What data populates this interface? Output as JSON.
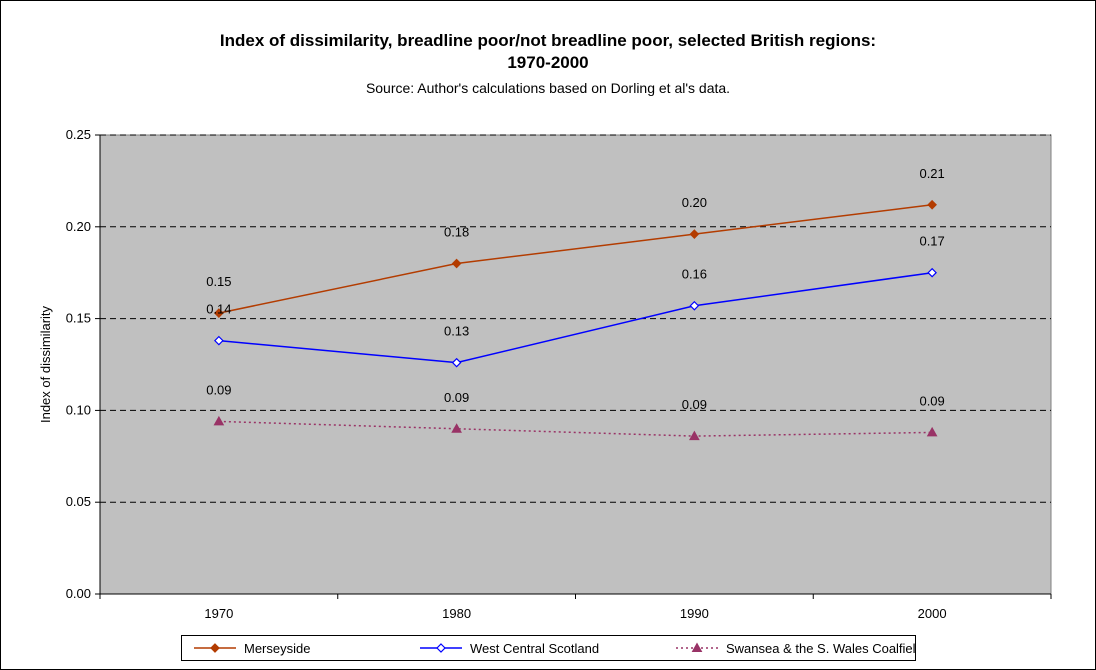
{
  "chart_data": {
    "type": "line",
    "title": "Index of dissimilarity, breadline poor/not breadline poor, selected British regions:",
    "title_line2": "1970-2000",
    "subtitle": "Source: Author's calculations based on Dorling et al's data.",
    "xlabel": "",
    "ylabel": "Index of dissimilarity",
    "categories": [
      "1970",
      "1980",
      "1990",
      "2000"
    ],
    "ylim": [
      0,
      0.25
    ],
    "yticks": [
      "0.00",
      "0.05",
      "0.10",
      "0.15",
      "0.20",
      "0.25"
    ],
    "grid": "horizontal dashed",
    "plot_background": "#c0c0c0",
    "legend_position": "bottom",
    "series": [
      {
        "name": "Merseyside",
        "values": [
          0.153,
          0.18,
          0.196,
          0.212
        ],
        "labels": [
          "0.15",
          "0.18",
          "0.20",
          "0.21"
        ],
        "color": "#b33c00",
        "marker": "diamond-filled",
        "dash": "solid"
      },
      {
        "name": "West Central Scotland",
        "values": [
          0.138,
          0.126,
          0.157,
          0.175
        ],
        "labels": [
          "0.14",
          "0.13",
          "0.16",
          "0.17"
        ],
        "color": "#0000ff",
        "marker": "diamond-open",
        "dash": "solid"
      },
      {
        "name": "Swansea & the S. Wales Coalfields",
        "values": [
          0.094,
          0.09,
          0.086,
          0.088
        ],
        "labels": [
          "0.09",
          "0.09",
          "0.09",
          "0.09"
        ],
        "color": "#993366",
        "marker": "triangle",
        "dash": "dotted"
      }
    ]
  }
}
